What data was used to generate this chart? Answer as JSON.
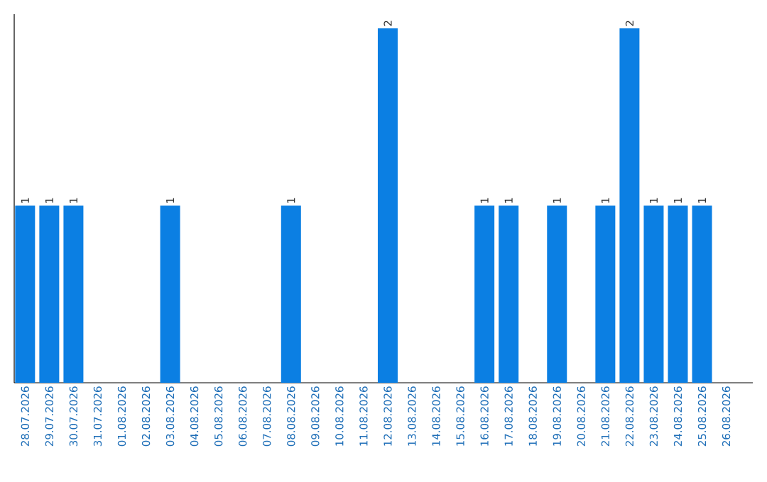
{
  "chart_data": {
    "type": "bar",
    "categories": [
      "28.07.2026",
      "29.07.2026",
      "30.07.2026",
      "31.07.2026",
      "01.08.2026",
      "02.08.2026",
      "03.08.2026",
      "04.08.2026",
      "05.08.2026",
      "06.08.2026",
      "07.08.2026",
      "08.08.2026",
      "09.08.2026",
      "10.08.2026",
      "11.08.2026",
      "12.08.2026",
      "13.08.2026",
      "14.08.2026",
      "15.08.2026",
      "16.08.2026",
      "17.08.2026",
      "18.08.2026",
      "19.08.2026",
      "20.08.2026",
      "21.08.2026",
      "22.08.2026",
      "23.08.2026",
      "24.08.2026",
      "25.08.2026",
      "26.08.2026"
    ],
    "values": [
      1,
      1,
      1,
      0,
      0,
      0,
      1,
      0,
      0,
      0,
      0,
      1,
      0,
      0,
      0,
      2,
      0,
      0,
      0,
      1,
      1,
      0,
      1,
      0,
      1,
      2,
      1,
      1,
      1,
      0
    ],
    "value_labels": [
      "1",
      "1",
      "1",
      null,
      null,
      null,
      "1",
      null,
      null,
      null,
      null,
      "1",
      null,
      null,
      null,
      "2",
      null,
      null,
      null,
      "1",
      "1",
      null,
      "1",
      null,
      "1",
      "2",
      "1",
      "1",
      "1",
      null
    ],
    "color": "#0b7fe3",
    "ylim": [
      0,
      2.08
    ]
  }
}
